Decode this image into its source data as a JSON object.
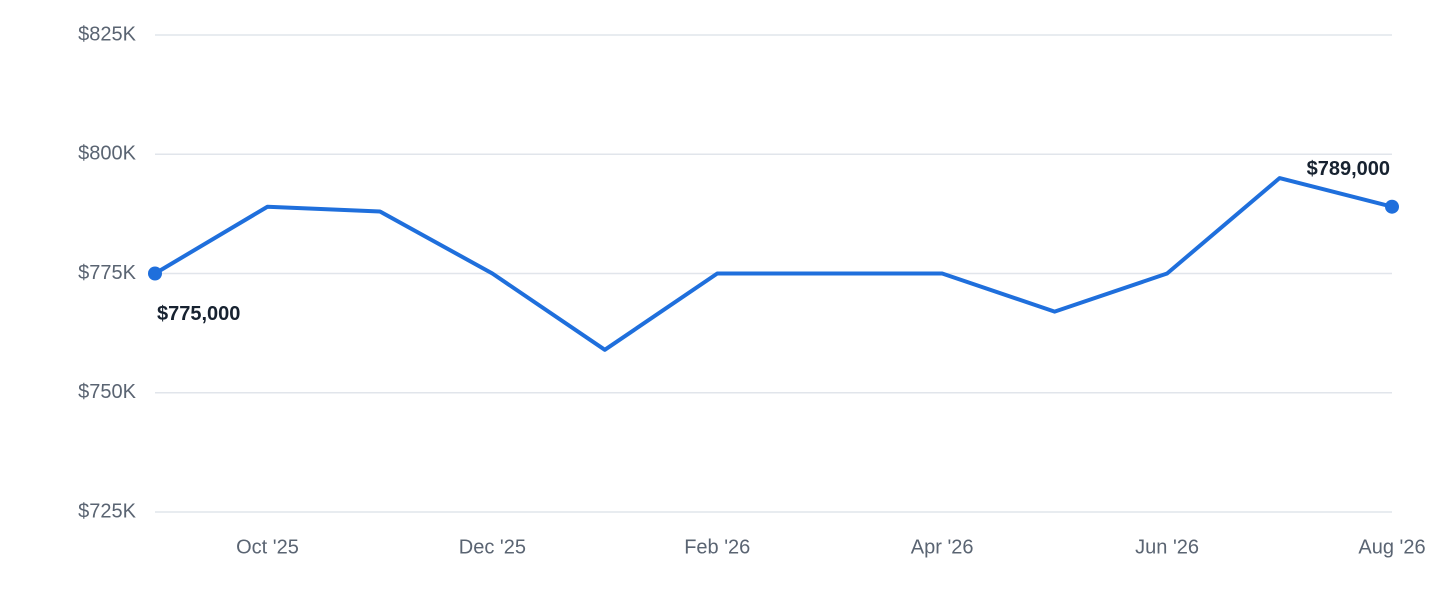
{
  "chart_data": {
    "type": "line",
    "categories": [
      null,
      "Oct '25",
      null,
      "Dec '25",
      null,
      "Feb '26",
      null,
      "Apr '26",
      null,
      "Jun '26",
      null,
      "Aug '26"
    ],
    "series": [
      {
        "color": "#1f6fdc",
        "values": [
          775000,
          789000,
          788000,
          775000,
          759000,
          775000,
          775000,
          775000,
          767000,
          775000,
          795000,
          789000
        ],
        "value_labels": [
          "$775,000",
          null,
          null,
          null,
          null,
          null,
          null,
          null,
          null,
          null,
          null,
          "$789,000"
        ]
      }
    ],
    "ylim": [
      725000,
      825000
    ],
    "yticks": [
      {
        "value": 725000,
        "label": "$725K"
      },
      {
        "value": 750000,
        "label": "$750K"
      },
      {
        "value": 775000,
        "label": "$775K"
      },
      {
        "value": 800000,
        "label": "$800K"
      },
      {
        "value": 825000,
        "label": "$825K"
      }
    ],
    "grid": true
  }
}
